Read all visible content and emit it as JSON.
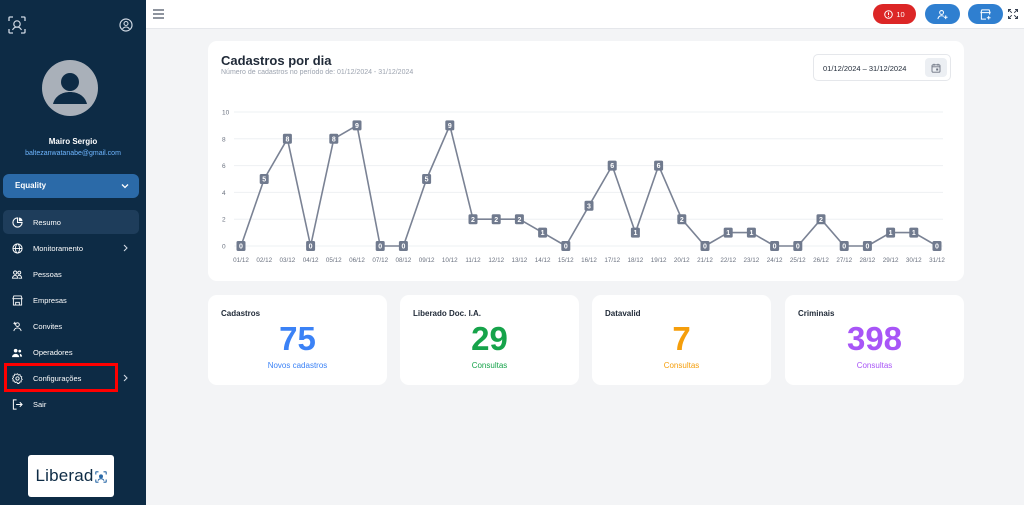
{
  "sidebar": {
    "user": {
      "name": "Mairo Sergio",
      "email": "baltezanwatanabe@gmail.com"
    },
    "org_select": "Equality",
    "menu": [
      {
        "label": "Resumo",
        "icon": "pie-chart-icon",
        "active": true,
        "has_submenu": false
      },
      {
        "label": "Monitoramento",
        "icon": "globe-icon",
        "active": false,
        "has_submenu": true
      },
      {
        "label": "Pessoas",
        "icon": "people-icon",
        "active": false,
        "has_submenu": false
      },
      {
        "label": "Empresas",
        "icon": "store-icon",
        "active": false,
        "has_submenu": false
      },
      {
        "label": "Convites",
        "icon": "person-add-icon",
        "active": false,
        "has_submenu": false
      },
      {
        "label": "Operadores",
        "icon": "users-icon",
        "active": false,
        "has_submenu": false
      },
      {
        "label": "Configurações",
        "icon": "gear-icon",
        "active": false,
        "has_submenu": true
      },
      {
        "label": "Sair",
        "icon": "logout-icon",
        "active": false,
        "has_submenu": false
      }
    ],
    "brand": "Liberad"
  },
  "topbar": {
    "alert_count": "10",
    "colors": {
      "alert": "#dc2626",
      "action": "#2f7fd0"
    }
  },
  "chart": {
    "title": "Cadastros por dia",
    "subtitle": "Número de cadastros no período de: 01/12/2024 - 31/12/2024",
    "date_range": "01/12/2024 – 31/12/2024"
  },
  "chart_data": {
    "type": "line",
    "x": [
      "01/12",
      "02/12",
      "03/12",
      "04/12",
      "05/12",
      "06/12",
      "07/12",
      "08/12",
      "09/12",
      "10/12",
      "11/12",
      "12/12",
      "13/12",
      "14/12",
      "15/12",
      "16/12",
      "17/12",
      "18/12",
      "19/12",
      "20/12",
      "21/12",
      "22/12",
      "23/12",
      "24/12",
      "25/12",
      "26/12",
      "27/12",
      "28/12",
      "29/12",
      "30/12",
      "31/12"
    ],
    "series": [
      {
        "values": [
          0,
          5,
          8,
          0,
          8,
          9,
          0,
          0,
          5,
          9,
          2,
          2,
          2,
          1,
          0,
          3,
          6,
          1,
          6,
          2,
          0,
          1,
          1,
          0,
          0,
          2,
          0,
          0,
          1,
          1,
          0
        ]
      }
    ],
    "yticks": [
      0,
      2,
      4,
      6,
      8,
      10
    ],
    "ylim": [
      0,
      10
    ],
    "grid": true,
    "color": "#7a8294"
  },
  "stats": [
    {
      "title": "Cadastros",
      "value": "75",
      "label": "Novos cadastros",
      "color": "#3b82f6"
    },
    {
      "title": "Liberado Doc. I.A.",
      "value": "29",
      "label": "Consultas",
      "color": "#16a34a"
    },
    {
      "title": "Datavalid",
      "value": "7",
      "label": "Consultas",
      "color": "#f59e0b"
    },
    {
      "title": "Criminais",
      "value": "398",
      "label": "Consultas",
      "color": "#a855f7"
    }
  ]
}
